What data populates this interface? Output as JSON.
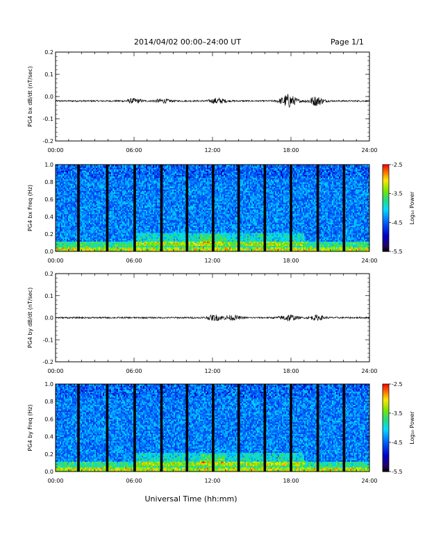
{
  "header": {
    "title": "2014/04/02  00:00–24:00 UT",
    "page": "Page 1/1"
  },
  "xaxis_label": "Universal Time (hh:mm)",
  "chart_data": [
    {
      "type": "line",
      "ylabel": "PG4 bx dB/dt (nT/sec)",
      "xlim": [
        0,
        24
      ],
      "ylim": [
        -0.2,
        0.2
      ],
      "xticks": [
        "00:00",
        "06:00",
        "12:00",
        "18:00",
        "24:00"
      ],
      "yticks": [
        "0.2",
        "0.1",
        "0.0",
        "-0.1",
        "-0.2"
      ],
      "series": [
        {
          "baseline": -0.02,
          "bursts": [
            [
              17.8,
              0.03
            ],
            [
              19.9,
              0.02
            ],
            [
              12.4,
              0.012
            ],
            [
              6.0,
              0.01
            ],
            [
              8.2,
              0.008
            ]
          ]
        }
      ]
    },
    {
      "type": "heatmap",
      "ylabel": "PG4 bx Freq (Hz)",
      "xlim": [
        0,
        24
      ],
      "ylim": [
        0.0,
        1.0
      ],
      "xticks": [
        "00:00",
        "06:00",
        "12:00",
        "18:00",
        "24:00"
      ],
      "yticks": [
        "1.0",
        "0.8",
        "0.6",
        "0.4",
        "0.2",
        "0.0"
      ],
      "data_gaps_hours": [
        1.75,
        3.95,
        6.05,
        8.1,
        10.05,
        12.05,
        14.0,
        16.0,
        18.0,
        20.05,
        22.05
      ],
      "colorbar": {
        "label": "Log₁₀ Power",
        "ticks": [
          "-2.5",
          "-3.5",
          "-4.5",
          "-5.5"
        ],
        "range": [
          -5.5,
          -2.5
        ]
      }
    },
    {
      "type": "line",
      "ylabel": "PG4 by dB/dt (nT/sec)",
      "xlim": [
        0,
        24
      ],
      "ylim": [
        -0.2,
        0.2
      ],
      "xticks": [
        "00:00",
        "06:00",
        "12:00",
        "18:00",
        "24:00"
      ],
      "yticks": [
        "0.2",
        "0.1",
        "0.0",
        "-0.1",
        "-0.2"
      ],
      "series": [
        {
          "baseline": 0.0,
          "bursts": [
            [
              17.8,
              0.015
            ],
            [
              12.2,
              0.012
            ],
            [
              20.0,
              0.01
            ],
            [
              13.5,
              0.01
            ]
          ]
        }
      ]
    },
    {
      "type": "heatmap",
      "ylabel": "PG4 by Freq (Hz)",
      "xlim": [
        0,
        24
      ],
      "ylim": [
        0.0,
        1.0
      ],
      "xticks": [
        "00:00",
        "06:00",
        "12:00",
        "18:00",
        "24:00"
      ],
      "yticks": [
        "1.0",
        "0.8",
        "0.6",
        "0.4",
        "0.2",
        "0.0"
      ],
      "data_gaps_hours": [
        1.75,
        3.95,
        6.05,
        8.1,
        10.05,
        12.05,
        14.0,
        16.0,
        18.0,
        20.05,
        22.05
      ],
      "colorbar": {
        "label": "Log₁₀ Power",
        "ticks": [
          "-2.5",
          "-3.5",
          "-4.5",
          "-5.5"
        ],
        "range": [
          -5.5,
          -2.5
        ]
      }
    }
  ]
}
